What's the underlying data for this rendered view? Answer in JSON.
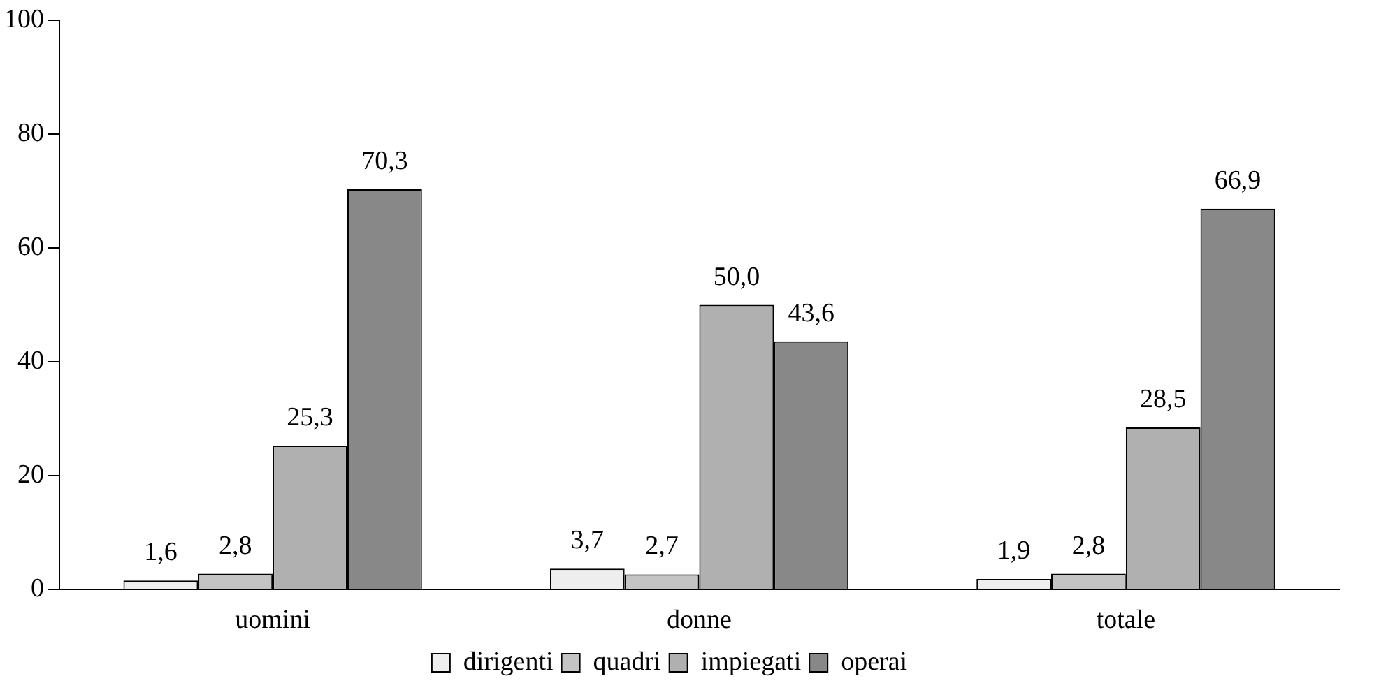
{
  "chart_data": {
    "type": "bar",
    "categories": [
      "uomini",
      "donne",
      "totale"
    ],
    "series": [
      {
        "name": "dirigenti",
        "color": "#eeeeee",
        "values": [
          1.6,
          3.7,
          1.9
        ],
        "value_labels": [
          "1,6",
          "3,7",
          "1,9"
        ]
      },
      {
        "name": "quadri",
        "color": "#c4c4c4",
        "values": [
          2.8,
          2.7,
          2.8
        ],
        "value_labels": [
          "2,8",
          "2,7",
          "2,8"
        ]
      },
      {
        "name": "impiegati",
        "color": "#b0b0b0",
        "values": [
          25.3,
          50.0,
          28.5
        ],
        "value_labels": [
          "25,3",
          "50,0",
          "28,5"
        ]
      },
      {
        "name": "operai",
        "color": "#888888",
        "values": [
          70.3,
          43.6,
          66.9
        ],
        "value_labels": [
          "70,3",
          "43,6",
          "66,9"
        ]
      }
    ],
    "ylim": [
      0,
      100
    ],
    "yticks": [
      0,
      20,
      40,
      60,
      80,
      100
    ],
    "grid": false,
    "legend": "bottom"
  }
}
